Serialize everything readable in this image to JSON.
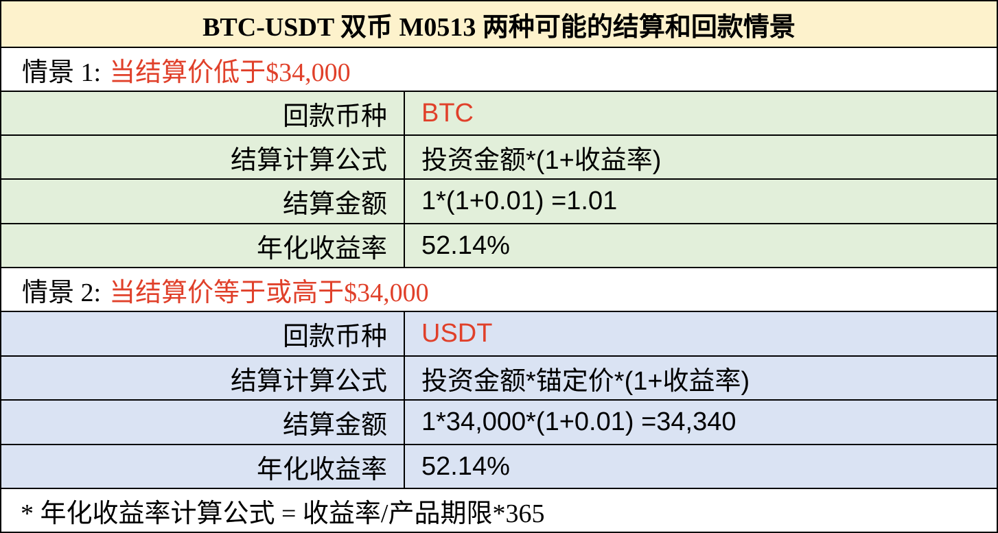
{
  "title": "BTC-USDT 双币 M0513 两种可能的结算和回款情景",
  "scenarios": [
    {
      "label": "情景 1:",
      "condition": "当结算价低于$34,000",
      "rows": [
        [
          "回款币种",
          "BTC"
        ],
        [
          "结算计算公式",
          "投资金额*(1+收益率)"
        ],
        [
          "结算金额",
          "1*(1+0.01) =1.01"
        ],
        [
          "年化收益率",
          "52.14%"
        ]
      ]
    },
    {
      "label": "情景 2:",
      "condition": "当结算价等于或高于$34,000",
      "rows": [
        [
          "回款币种",
          "USDT"
        ],
        [
          "结算计算公式",
          "投资金额*锚定价*(1+收益率)"
        ],
        [
          "结算金额",
          "1*34,000*(1+0.01) =34,340"
        ],
        [
          "年化收益率",
          "52.14%"
        ]
      ]
    }
  ],
  "footnote": "* 年化收益率计算公式 = 收益率/产品期限*365"
}
